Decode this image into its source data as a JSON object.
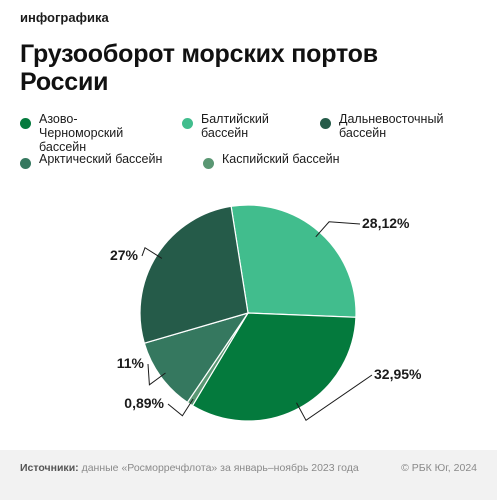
{
  "header": {
    "tag": "инфографика",
    "title": "Грузооборот морских портов России"
  },
  "chart_data": {
    "type": "pie",
    "title": "Грузооборот морских портов России",
    "slices": [
      {
        "label": "Азово-Черноморский бассейн",
        "value": 32.95,
        "display": "32,95%",
        "color": "#047a3d"
      },
      {
        "label": "Балтийский бассейн",
        "value": 28.12,
        "display": "28,12%",
        "color": "#41bd8d"
      },
      {
        "label": "Дальневосточный бассейн",
        "value": 27,
        "display": "27%",
        "color": "#255b49"
      },
      {
        "label": "Арктический бассейн",
        "value": 11,
        "display": "11%",
        "color": "#35785f"
      },
      {
        "label": "Каспийский бассейн",
        "value": 0.89,
        "display": "0,89%",
        "color": "#5a9773"
      }
    ],
    "legend_position": "top"
  },
  "legend": [
    {
      "label": "Азово-Черноморский бассейн",
      "color": "#047a3d"
    },
    {
      "label": "Балтийский бассейн",
      "color": "#41bd8d"
    },
    {
      "label": "Дальневосточный бассейн",
      "color": "#255b49"
    },
    {
      "label": "Арктический бассейн",
      "color": "#35785f"
    },
    {
      "label": "Каспийский бассейн",
      "color": "#5a9773"
    }
  ],
  "footer": {
    "source_label": "Источники:",
    "source_text": " данные «Росморречфлота» за январь–ноябрь 2023 года",
    "credit": "© РБК Юг, 2024"
  }
}
